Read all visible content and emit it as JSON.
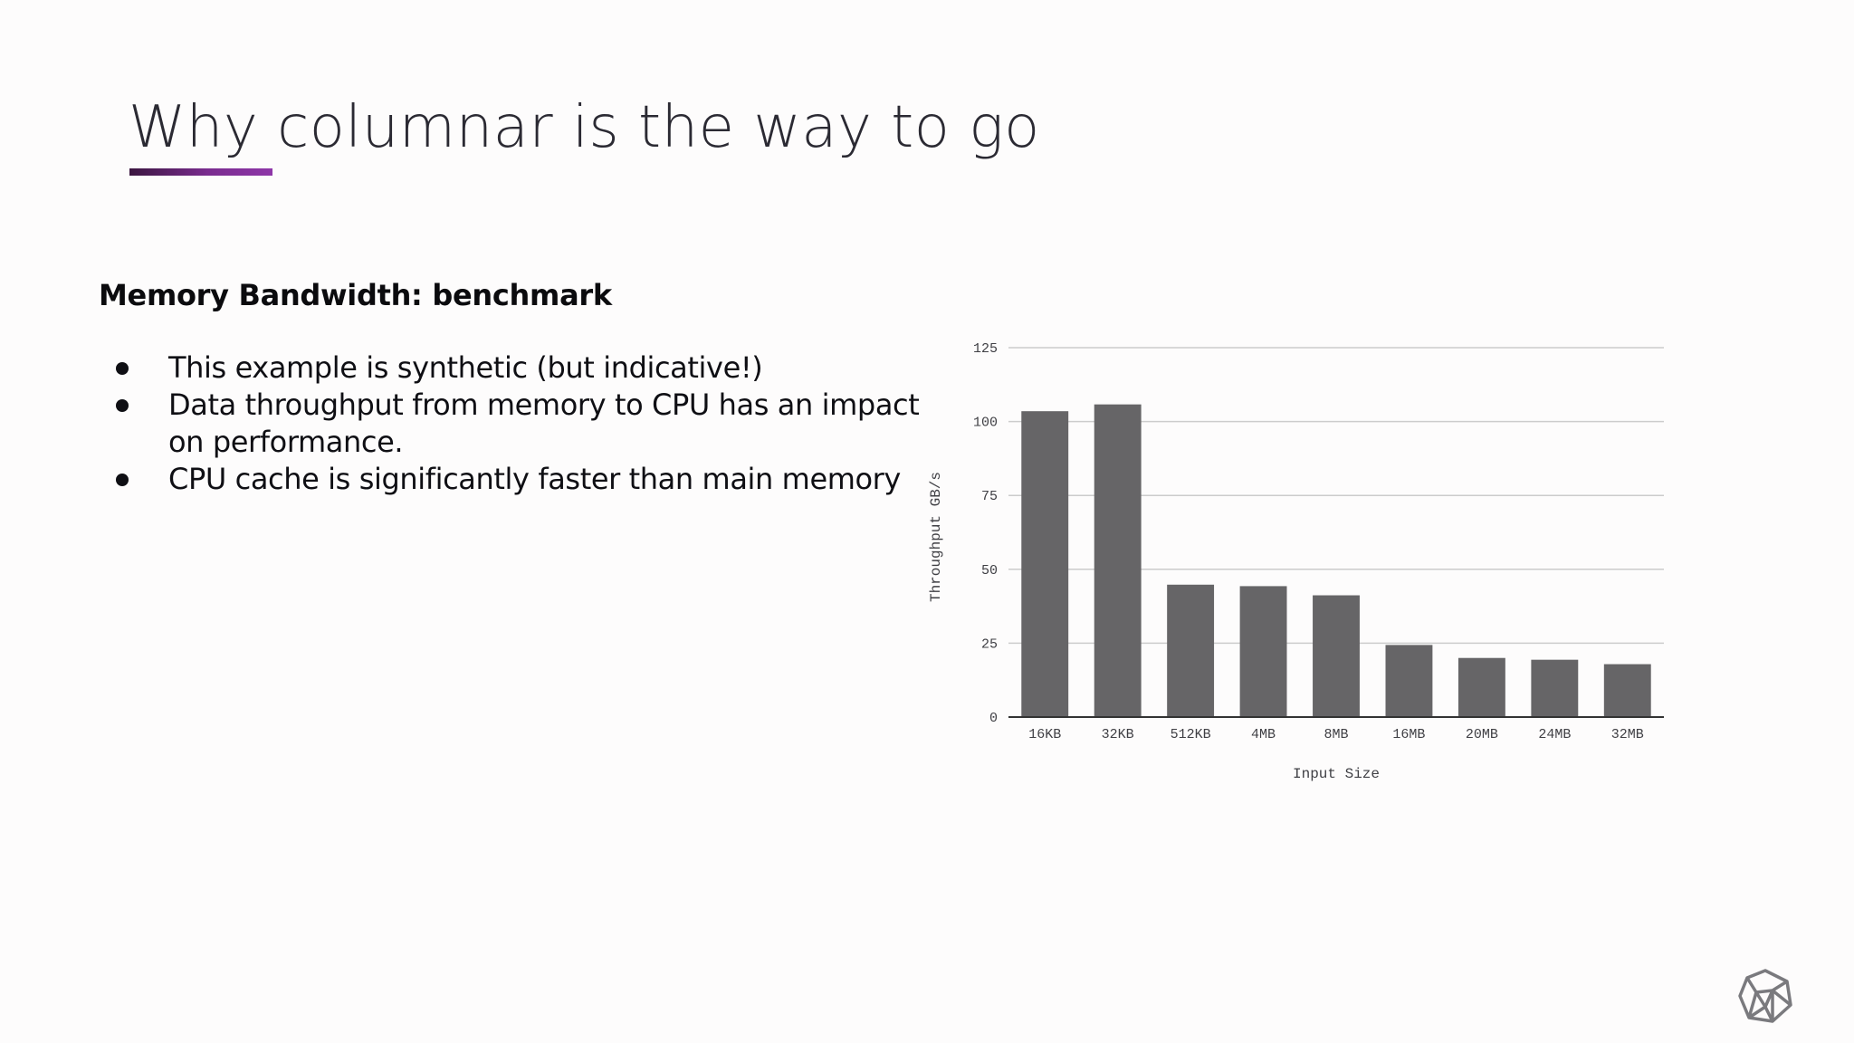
{
  "slide": {
    "title": "Why columnar is the way to go",
    "subheading": "Memory Bandwidth: benchmark",
    "bullets": [
      "This example is synthetic (but indicative!)",
      "Data throughput from memory to CPU has an impact on performance.",
      "CPU cache is significantly faster than main memory"
    ],
    "logo_icon": "polyhedron-icon"
  },
  "colors": {
    "title_text": "#2b2a33",
    "accent_underline_start": "#3b1640",
    "accent_underline_end": "#8e36a8",
    "bar_fill": "#666567",
    "gridline": "#cccccc",
    "axis_line": "#333333",
    "background": "#fdfcfc"
  },
  "chart_data": {
    "type": "bar",
    "title": "",
    "xlabel": "Input Size",
    "ylabel": "Throughput GB/s",
    "categories": [
      "16KB",
      "32KB",
      "512KB",
      "4MB",
      "8MB",
      "16MB",
      "20MB",
      "24MB",
      "32MB"
    ],
    "values": [
      103.5,
      105.8,
      44.8,
      44.3,
      41.2,
      24.4,
      20.0,
      19.4,
      17.9
    ],
    "ylim": [
      0,
      125
    ],
    "yticks": [
      0,
      25,
      50,
      75,
      100,
      125
    ],
    "grid": true,
    "legend": "none"
  }
}
